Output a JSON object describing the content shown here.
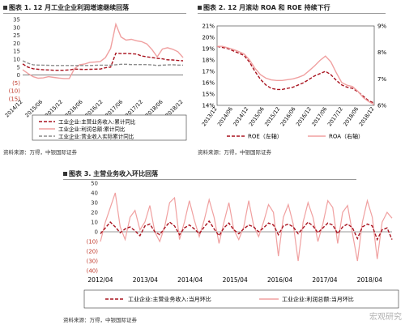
{
  "header": {
    "title1": "图表 1. 12 月工业企业利润增速继续回落",
    "title2": "图表 2. 12 月滚动 ROA 和 ROE 持续下行",
    "title3": "图表 3. 主营业务收入环比回落"
  },
  "footer": {
    "source1": "资料来源：万得，中银国际证券",
    "source2": "资料来源：万得，中银国际证券",
    "source3": "资料来源：万得，中银国际证券"
  },
  "watermark": "宏观研究",
  "colors": {
    "dark_red": "#a8121e",
    "pink": "#f0a0a0",
    "gray": "#8c8c8c"
  },
  "chart_data": [
    {
      "type": "line",
      "title": "12 月工业企业利润增速继续回落",
      "x_ticks": [
        "2014/12",
        "2015/06",
        "2015/12",
        "2016/06",
        "2016/12",
        "2017/06",
        "2017/12",
        "2018/06",
        "2018/12"
      ],
      "ylim": [
        -15,
        35
      ],
      "y_ticks": [
        "35",
        "30",
        "25",
        "20",
        "15",
        "10",
        "5",
        "0",
        "(5)",
        "(10)",
        "(15)"
      ],
      "series": [
        {
          "name": "工业企业:主营业务收入:累计同比",
          "style": "dashed",
          "color": "#a8121e",
          "values": [
            7.0,
            5.0,
            4.0,
            3.6,
            3.3,
            3.2,
            3.0,
            3.0,
            3.0,
            3.2,
            3.8,
            3.6,
            3.5,
            3.6,
            3.7,
            3.8,
            4.6,
            5.0,
            13.8,
            13.5,
            13.6,
            13.4,
            13.2,
            12.0,
            11.5,
            11.0,
            10.5,
            10.2,
            9.6,
            9.5,
            9.2,
            9.0
          ]
        },
        {
          "name": "工业企业:利润总额:累计同比",
          "style": "solid",
          "color": "#f0a0a0",
          "values": [
            3.3,
            1.0,
            -1.0,
            -2.0,
            -1.8,
            -1.0,
            -1.5,
            -1.9,
            -2.2,
            -2.2,
            4.0,
            6.5,
            7.0,
            8.0,
            8.2,
            8.5,
            11.0,
            16.8,
            32.0,
            24.0,
            22.0,
            22.5,
            21.6,
            21.0,
            19.6,
            16.0,
            11.5,
            16.4,
            17.2,
            16.2,
            14.7,
            11.0
          ]
        },
        {
          "name": "工业企业:营业收入实际累计同比",
          "style": "dashed",
          "color": "#8c8c8c",
          "values": [
            9.0,
            7.5,
            6.5,
            6.3,
            6.2,
            6.1,
            6.0,
            6.0,
            6.0,
            6.0,
            6.0,
            6.0,
            6.0,
            6.0,
            6.1,
            6.2,
            6.2,
            6.2,
            6.5,
            6.8,
            6.8,
            6.6,
            6.6,
            6.6,
            6.6,
            6.4,
            6.0,
            6.2,
            6.4,
            6.5,
            6.3,
            6.2
          ]
        }
      ]
    },
    {
      "type": "line",
      "title": "12 月滚动 ROA 和 ROE 持续下行",
      "x_ticks": [
        "2013/12",
        "2014/06",
        "2014/12",
        "2015/06",
        "2015/12",
        "2016/06",
        "2016/12",
        "2017/06",
        "2017/12",
        "2018/06",
        "2018/12"
      ],
      "ylim_left": [
        14,
        21
      ],
      "ylim_right": [
        6,
        9
      ],
      "y_ticks_left": [
        "21%",
        "20%",
        "19%",
        "18%",
        "17%",
        "16%",
        "15%",
        "14%"
      ],
      "y_ticks_right": [
        "9%",
        "8%",
        "7%",
        "6%"
      ],
      "series": [
        {
          "name": "ROE（左轴）",
          "axis": "left",
          "style": "dashed",
          "color": "#a8121e",
          "values": [
            19.2,
            19.1,
            19.0,
            18.8,
            18.6,
            18.4,
            17.8,
            17.0,
            16.3,
            15.8,
            15.5,
            15.4,
            15.4,
            15.5,
            15.6,
            15.8,
            16.0,
            16.3,
            16.6,
            16.8,
            17.0,
            16.7,
            16.2,
            15.8,
            15.6,
            15.5,
            15.2,
            14.8,
            14.4,
            14.2
          ]
        },
        {
          "name": "ROA（右轴）",
          "axis": "right",
          "style": "solid",
          "color": "#f0a0a0",
          "values": [
            8.23,
            8.23,
            8.17,
            8.11,
            8.03,
            7.94,
            7.71,
            7.4,
            7.16,
            7.03,
            6.96,
            6.94,
            6.94,
            6.97,
            7.0,
            7.06,
            7.14,
            7.31,
            7.49,
            7.7,
            7.86,
            7.64,
            7.23,
            6.86,
            6.76,
            6.71,
            6.53,
            6.29,
            6.14,
            6.03
          ]
        }
      ]
    },
    {
      "type": "line",
      "title": "主营业务收入环比回落",
      "x_ticks": [
        "2012/04",
        "2013/04",
        "2014/04",
        "2015/04",
        "2016/04",
        "2017/04",
        "2018/04"
      ],
      "ylim": [
        -40,
        50
      ],
      "y_ticks": [
        "50",
        "40",
        "30",
        "20",
        "10",
        "0",
        "(10)",
        "(20)",
        "(30)",
        "(40)"
      ],
      "series": [
        {
          "name": "工业企业:主营业务收入:当月环比",
          "style": "dashed",
          "color": "#a8121e",
          "values": [
            -2,
            4,
            10,
            5,
            -1,
            3,
            5,
            1,
            -4,
            6,
            8,
            0,
            -3,
            4,
            10,
            6,
            -3,
            4,
            7,
            3,
            -2,
            5,
            11,
            3,
            -4,
            4,
            9,
            2,
            -2,
            3,
            7,
            5,
            0,
            4,
            9,
            7,
            -3,
            6,
            8,
            5,
            -2,
            4,
            10,
            6,
            -1,
            4,
            9,
            7,
            -2,
            5,
            8,
            4,
            -7,
            5,
            8,
            6,
            -8,
            2,
            4,
            -8
          ]
        },
        {
          "name": "工业企业:利润总额:当月环比",
          "style": "solid",
          "color": "#f0a0a0",
          "values": [
            -10,
            10,
            25,
            40,
            5,
            -8,
            15,
            22,
            2,
            10,
            27,
            0,
            -10,
            5,
            30,
            35,
            -8,
            10,
            32,
            12,
            -5,
            12,
            33,
            15,
            -12,
            10,
            30,
            2,
            -8,
            5,
            32,
            6,
            -5,
            10,
            28,
            20,
            -25,
            15,
            28,
            8,
            -30,
            10,
            30,
            15,
            -10,
            8,
            32,
            25,
            -12,
            20,
            27,
            -2,
            -30,
            10,
            32,
            15,
            -28,
            10,
            20,
            14
          ]
        }
      ]
    }
  ]
}
